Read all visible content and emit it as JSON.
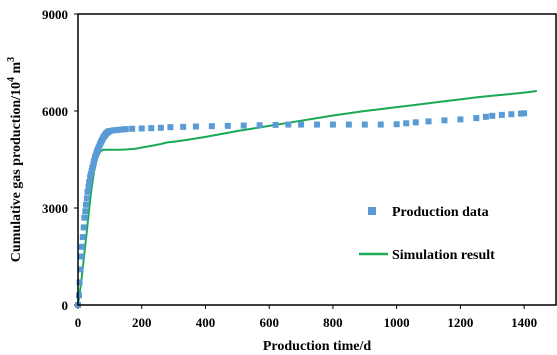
{
  "chart_data": {
    "type": "scatter",
    "xlabel": "Production time/d",
    "ylabel_main": "Cumulative gas production/10",
    "ylabel_sup": "4",
    "ylabel_unit": " m",
    "ylabel_unit_sup": "3",
    "xlim": [
      0,
      1500
    ],
    "ylim": [
      0,
      9000
    ],
    "xticks": [
      0,
      200,
      400,
      600,
      800,
      1000,
      1200,
      1400
    ],
    "yticks": [
      0,
      3000,
      6000,
      9000
    ],
    "grid": false,
    "legend_position": "center-right",
    "series": [
      {
        "name": "Production data",
        "kind": "markers",
        "color": "#5b9bd5",
        "points": [
          [
            0,
            0
          ],
          [
            3,
            300
          ],
          [
            5,
            700
          ],
          [
            8,
            1100
          ],
          [
            10,
            1500
          ],
          [
            12,
            1800
          ],
          [
            15,
            2100
          ],
          [
            18,
            2400
          ],
          [
            20,
            2700
          ],
          [
            23,
            2900
          ],
          [
            25,
            3100
          ],
          [
            28,
            3300
          ],
          [
            30,
            3500
          ],
          [
            33,
            3650
          ],
          [
            35,
            3800
          ],
          [
            38,
            3950
          ],
          [
            40,
            4050
          ],
          [
            43,
            4150
          ],
          [
            45,
            4250
          ],
          [
            48,
            4350
          ],
          [
            50,
            4450
          ],
          [
            53,
            4550
          ],
          [
            55,
            4620
          ],
          [
            58,
            4700
          ],
          [
            60,
            4760
          ],
          [
            63,
            4820
          ],
          [
            65,
            4880
          ],
          [
            68,
            4940
          ],
          [
            70,
            5000
          ],
          [
            73,
            5050
          ],
          [
            75,
            5100
          ],
          [
            78,
            5150
          ],
          [
            80,
            5190
          ],
          [
            83,
            5230
          ],
          [
            85,
            5260
          ],
          [
            88,
            5290
          ],
          [
            90,
            5320
          ],
          [
            93,
            5340
          ],
          [
            95,
            5360
          ],
          [
            98,
            5370
          ],
          [
            100,
            5380
          ],
          [
            110,
            5400
          ],
          [
            120,
            5410
          ],
          [
            130,
            5420
          ],
          [
            140,
            5430
          ],
          [
            150,
            5440
          ],
          [
            170,
            5450
          ],
          [
            200,
            5460
          ],
          [
            230,
            5470
          ],
          [
            260,
            5480
          ],
          [
            290,
            5500
          ],
          [
            330,
            5510
          ],
          [
            370,
            5520
          ],
          [
            420,
            5530
          ],
          [
            470,
            5540
          ],
          [
            520,
            5550
          ],
          [
            570,
            5560
          ],
          [
            620,
            5570
          ],
          [
            660,
            5580
          ],
          [
            700,
            5580
          ],
          [
            750,
            5580
          ],
          [
            800,
            5580
          ],
          [
            850,
            5580
          ],
          [
            900,
            5580
          ],
          [
            950,
            5580
          ],
          [
            1000,
            5590
          ],
          [
            1030,
            5620
          ],
          [
            1060,
            5650
          ],
          [
            1100,
            5680
          ],
          [
            1150,
            5710
          ],
          [
            1200,
            5740
          ],
          [
            1250,
            5780
          ],
          [
            1280,
            5820
          ],
          [
            1300,
            5850
          ],
          [
            1330,
            5880
          ],
          [
            1360,
            5900
          ],
          [
            1390,
            5920
          ],
          [
            1400,
            5930
          ]
        ]
      },
      {
        "name": "Simulation result",
        "kind": "line",
        "color": "#1aaa55",
        "points": [
          [
            0,
            0
          ],
          [
            10,
            700
          ],
          [
            20,
            1600
          ],
          [
            30,
            2500
          ],
          [
            40,
            3400
          ],
          [
            50,
            4100
          ],
          [
            60,
            4550
          ],
          [
            70,
            4750
          ],
          [
            80,
            4800
          ],
          [
            100,
            4800
          ],
          [
            130,
            4800
          ],
          [
            150,
            4810
          ],
          [
            180,
            4830
          ],
          [
            200,
            4870
          ],
          [
            230,
            4920
          ],
          [
            260,
            4980
          ],
          [
            280,
            5030
          ],
          [
            300,
            5050
          ],
          [
            350,
            5120
          ],
          [
            400,
            5200
          ],
          [
            450,
            5290
          ],
          [
            500,
            5380
          ],
          [
            550,
            5460
          ],
          [
            600,
            5540
          ],
          [
            650,
            5620
          ],
          [
            700,
            5700
          ],
          [
            750,
            5780
          ],
          [
            800,
            5860
          ],
          [
            850,
            5930
          ],
          [
            900,
            6000
          ],
          [
            950,
            6060
          ],
          [
            1000,
            6120
          ],
          [
            1050,
            6180
          ],
          [
            1100,
            6240
          ],
          [
            1150,
            6300
          ],
          [
            1200,
            6360
          ],
          [
            1250,
            6420
          ],
          [
            1300,
            6470
          ],
          [
            1350,
            6520
          ],
          [
            1400,
            6570
          ],
          [
            1440,
            6620
          ]
        ]
      }
    ]
  }
}
